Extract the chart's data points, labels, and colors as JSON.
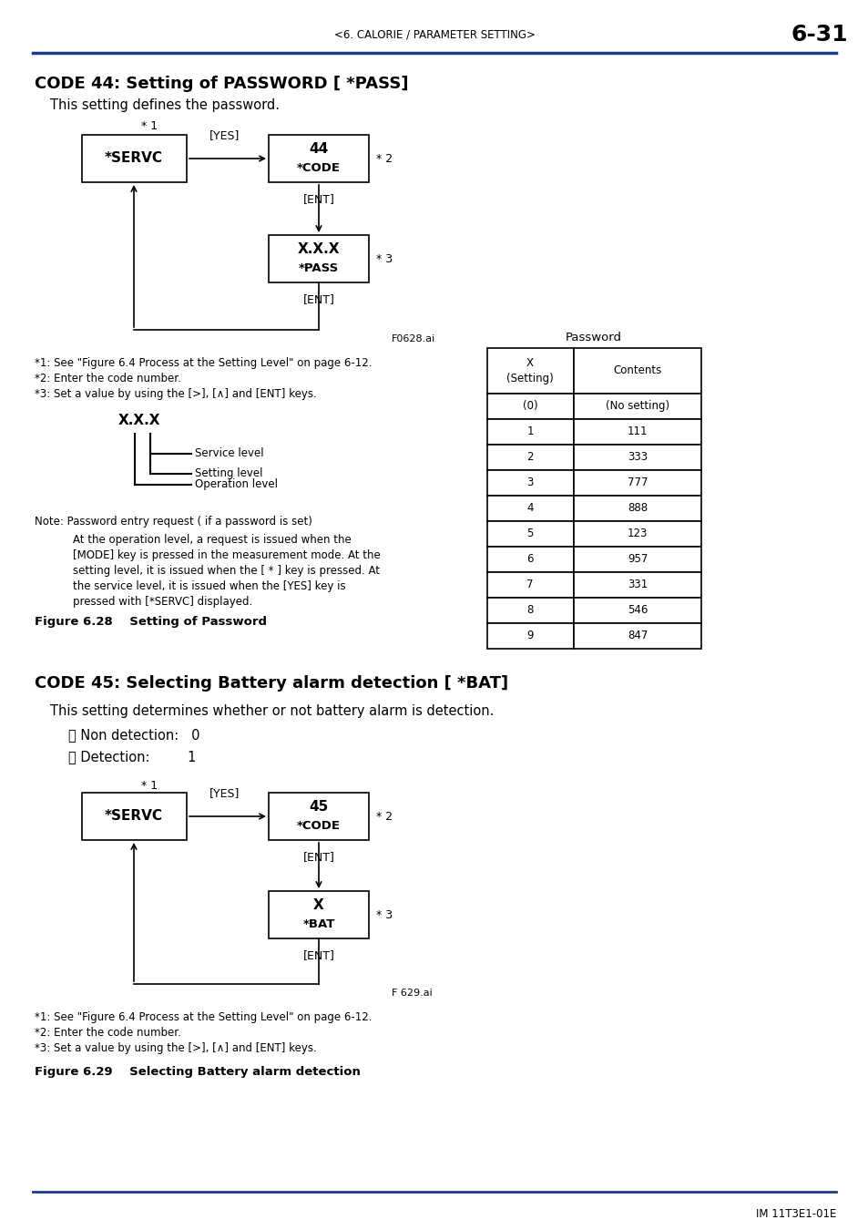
{
  "page_header_left": "<6. CALORIE / PARAMETER SETTING>",
  "page_header_right": "6-31",
  "header_line_color": "#1a3a8c",
  "bg_color": "#ffffff",
  "text_color": "#000000",
  "section1_title": "CODE 44: Setting of PASSWORD [ *PASS]",
  "section1_subtitle": "This setting defines the password.",
  "diagram1_note_star1": "* 1",
  "diagram1_box1_line1": "*SERVC",
  "diagram1_arrow1_label": "[YES]",
  "diagram1_box2_line1": "44",
  "diagram1_box2_line2": "*CODE",
  "diagram1_star2": "* 2",
  "diagram1_ent1": "[ENT]",
  "diagram1_box3_line1": "X.X.X",
  "diagram1_box3_line2": "*PASS",
  "diagram1_star3": "* 3",
  "diagram1_ent2": "[ENT]",
  "diagram1_filename": "F0628.ai",
  "notes1_line1": "*1: See \"Figure 6.4 Process at the Setting Level\" on page 6-12.",
  "notes1_line2": "*2: Enter the code number.",
  "notes1_line3": "*3: Set a value by using the [>], [∧] and [ENT] keys.",
  "diagram1_sub_label": "X.X.X",
  "diagram1_sub_arrow1": "Service level",
  "diagram1_sub_arrow2": "Setting level",
  "diagram1_sub_arrow3": "Operation level",
  "note_title": "Note: Password entry request ( if a password is set)",
  "note_body_lines": [
    "At the operation level, a request is issued when the",
    "[MODE] key is pressed in the measurement mode. At the",
    "setting level, it is issued when the [ * ] key is pressed. At",
    "the service level, it is issued when the [YES] key is",
    "pressed with [*SERVC] displayed."
  ],
  "table_title": "Password",
  "table_col1": "X\n(Setting)",
  "table_col2": "Contents",
  "table_rows": [
    [
      "(0)",
      "(No setting)"
    ],
    [
      "1",
      "111"
    ],
    [
      "2",
      "333"
    ],
    [
      "3",
      "777"
    ],
    [
      "4",
      "888"
    ],
    [
      "5",
      "123"
    ],
    [
      "6",
      "957"
    ],
    [
      "7",
      "331"
    ],
    [
      "8",
      "546"
    ],
    [
      "9",
      "847"
    ]
  ],
  "fig1_caption": "Figure 6.28    Setting of Password",
  "section2_title": "CODE 45: Selecting Battery alarm detection [ *BAT]",
  "section2_subtitle": "This setting determines whether or not battery alarm is detection.",
  "section2_bullet1": "・ Non detection:   0",
  "section2_bullet2": "・ Detection:         1",
  "diagram2_note_star1": "* 1",
  "diagram2_box1_line1": "*SERVC",
  "diagram2_arrow1_label": "[YES]",
  "diagram2_box2_line1": "45",
  "diagram2_box2_line2": "*CODE",
  "diagram2_star2": "* 2",
  "diagram2_ent1": "[ENT]",
  "diagram2_box3_line1": "X",
  "diagram2_box3_line2": "*BAT",
  "diagram2_star3": "* 3",
  "diagram2_ent2": "[ENT]",
  "diagram2_filename": "F 629.ai",
  "notes2_line1": "*1: See \"Figure 6.4 Process at the Setting Level\" on page 6-12.",
  "notes2_line2": "*2: Enter the code number.",
  "notes2_line3": "*3: Set a value by using the [>], [∧] and [ENT] keys.",
  "fig2_caption": "Figure 6.29    Selecting Battery alarm detection",
  "footer_text": "IM 11T3E1-01E"
}
